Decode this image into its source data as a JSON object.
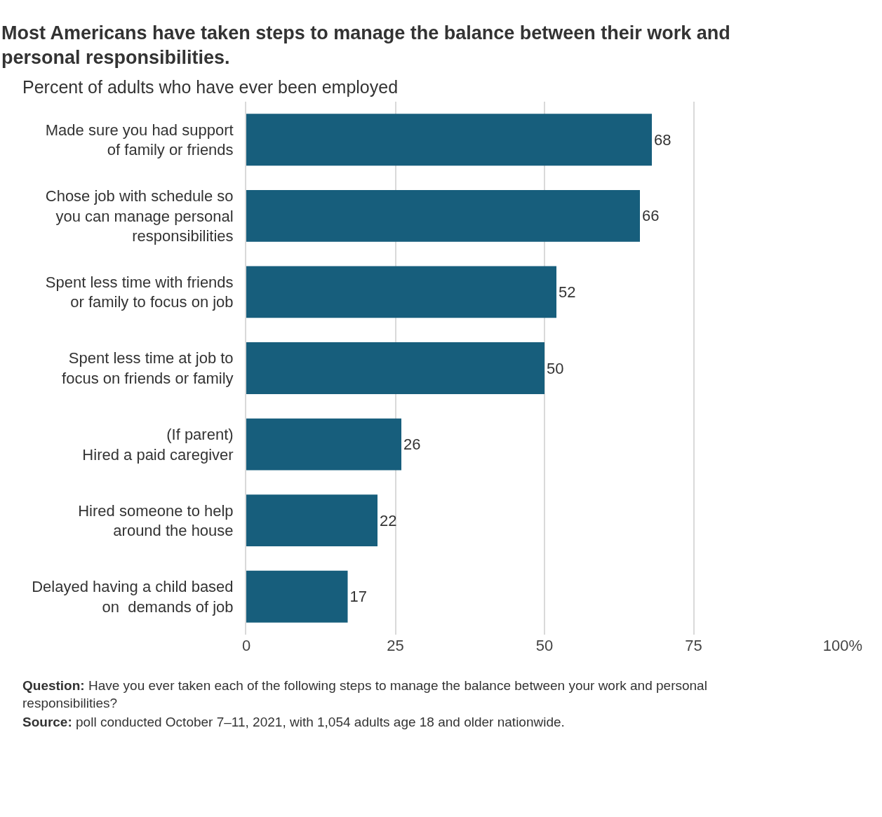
{
  "chart_data": {
    "type": "bar",
    "orientation": "horizontal",
    "title": "Most Americans have taken steps to manage the balance between their work and personal responsibilities.",
    "subtitle": "Percent of adults who have ever been employed",
    "categories": [
      "Made sure you had support\nof family or friends",
      "Chose job with schedule so\nyou can manage personal\nresponsibilities",
      "Spent less time with friends\nor family to focus on job",
      "Spent less time at job to\nfocus on friends or family",
      "(If parent)\nHired a paid caregiver",
      "Hired someone to help\naround the house",
      "Delayed having a child based\non  demands of job"
    ],
    "values": [
      68,
      66,
      52,
      50,
      26,
      22,
      17
    ],
    "color": "#175e7c",
    "xlim": [
      0,
      100
    ],
    "xticks": [
      0,
      25,
      50,
      75,
      {
        "value": 100,
        "label": "100%"
      }
    ],
    "grid": "x",
    "data_labels": true,
    "annotations": [
      "Question: Have you ever taken each of the following steps to manage the balance between your work and personal\nresponsibilities?",
      "Source: poll conducted October 7–11, 2021, with 1,054 adults age 18 and older nationwide."
    ]
  }
}
